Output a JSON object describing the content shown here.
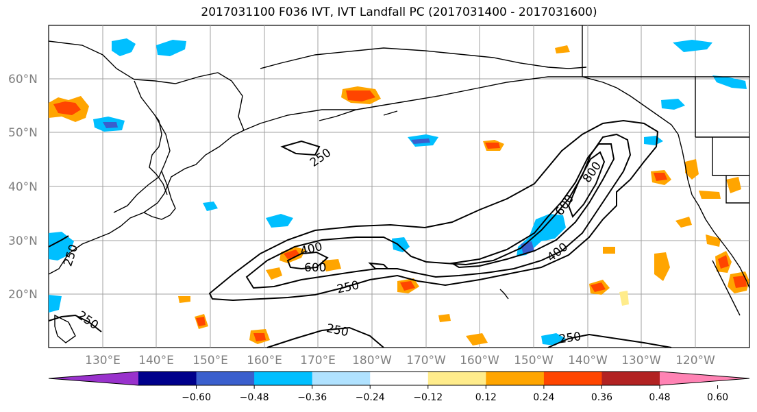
{
  "title": "2017031100 F036 IVT, IVT Landfall PC (2017031400 - 2017031600)",
  "map": {
    "lat_labels": [
      "60°N",
      "50°N",
      "40°N",
      "30°N",
      "20°N"
    ],
    "lon_labels": [
      "130°E",
      "140°E",
      "150°E",
      "160°E",
      "170°E",
      "180°W",
      "170°W",
      "160°W",
      "150°W",
      "140°W",
      "130°W",
      "120°W"
    ],
    "contour_labels": [
      "250",
      "250",
      "250",
      "250",
      "250",
      "250",
      "400",
      "400",
      "600",
      "600",
      "800"
    ]
  },
  "colorbar": {
    "colors": [
      "#9932cc",
      "#00008b",
      "#3a5fcd",
      "#00bfff",
      "#b0e2ff",
      "#ffffff",
      "#ffec8b",
      "#ffa500",
      "#ff4500",
      "#b22222",
      "#ff83b4"
    ],
    "ticks": [
      "−0.60",
      "−0.48",
      "−0.36",
      "−0.24",
      "−0.12",
      "0.12",
      "0.24",
      "0.36",
      "0.48",
      "0.60"
    ]
  }
}
